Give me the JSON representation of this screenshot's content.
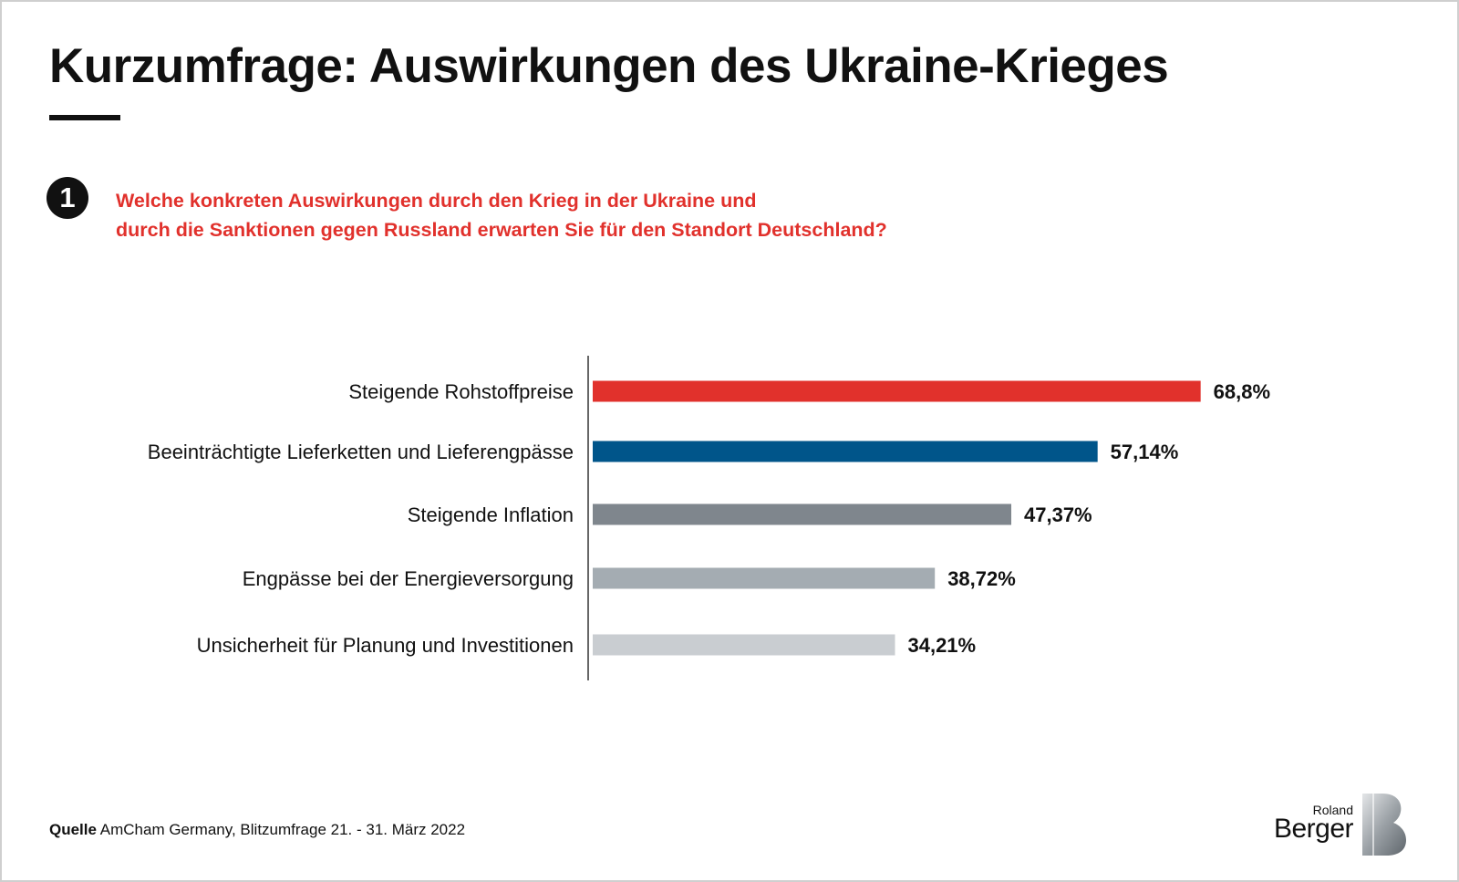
{
  "title": "Kurzumfrage: Auswirkungen des Ukraine-Krieges",
  "question": {
    "number": "1",
    "line1": "Welche konkreten Auswirkungen durch den Krieg in der Ukraine und",
    "line2": "durch die Sanktionen gegen Russland erwarten Sie für den Standort Deutschland?"
  },
  "source": {
    "label": "Quelle",
    "text": "AmCham Germany, Blitzumfrage 21. - 31. März 2022"
  },
  "logo": {
    "line1": "Roland",
    "line2": "Berger"
  },
  "chart_data": {
    "type": "bar",
    "orientation": "horizontal",
    "categories": [
      "Steigende Rohstoffpreise",
      "Beeinträchtigte Lieferketten und Lieferengpässe",
      "Steigende Inflation",
      "Engpässe bei der Energieversorgung",
      "Unsicherheit für Planung und Investitionen"
    ],
    "values": [
      68.8,
      57.14,
      47.37,
      38.72,
      34.21
    ],
    "value_labels": [
      "68,8%",
      "57,14%",
      "47,37%",
      "38,72%",
      "34,21%"
    ],
    "colors": [
      "#e1312c",
      "#00558a",
      "#7f868d",
      "#a4acb2",
      "#c9cdd1"
    ],
    "xlim": [
      0,
      100
    ],
    "grid": false,
    "legend": "none"
  }
}
